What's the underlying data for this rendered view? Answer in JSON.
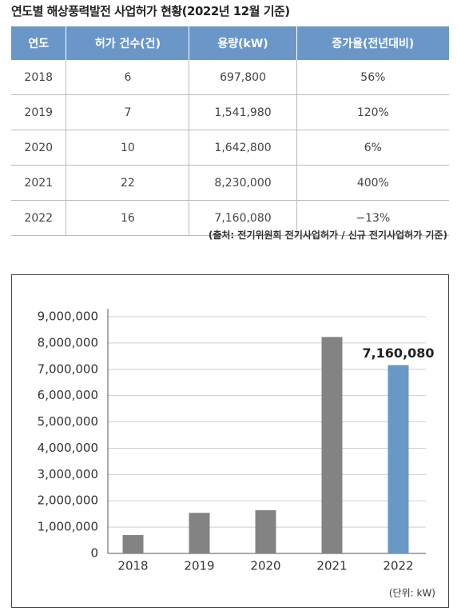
{
  "title": "연도별 해상풍력발전 사업허가 현황(2022년 12월 기준)",
  "table": {
    "header": [
      "연도",
      "허가 건수(건)",
      "용량(kW)",
      "증가율(전년대비)"
    ],
    "rows": [
      [
        "2018",
        "6",
        "697,800",
        "56%"
      ],
      [
        "2019",
        "7",
        "1,541,980",
        "120%"
      ],
      [
        "2020",
        "10",
        "1,642,800",
        "6%"
      ],
      [
        "2021",
        "22",
        "8,230,000",
        "400%"
      ],
      [
        "2022",
        "16",
        "7,160,080",
        "−13%"
      ]
    ]
  },
  "source": "(출처: 전기위원회 전기사업허가 / 신규 전기사업허가 기준)",
  "chart_data": {
    "type": "bar",
    "categories": [
      "2018",
      "2019",
      "2020",
      "2021",
      "2022"
    ],
    "values": [
      697800,
      1541980,
      1642800,
      8230000,
      7160080
    ],
    "value_labels": [
      null,
      null,
      null,
      null,
      "7,160,080"
    ],
    "colors": [
      "#838383",
      "#838383",
      "#838383",
      "#838383",
      "#6a98c6"
    ],
    "ylim": [
      0,
      9000000
    ],
    "yticks": [
      0,
      {
        "value": 1000000,
        "label": "1,000,000"
      },
      {
        "value": 2000000,
        "label": "2,000,000"
      },
      {
        "value": 3000000,
        "label": "3,000,000"
      },
      {
        "value": 4000000,
        "label": "4,000,000"
      },
      {
        "value": 5000000,
        "label": "5,000,000"
      },
      {
        "value": 6000000,
        "label": "6,000,000"
      },
      {
        "value": 7000000,
        "label": "7,000,000"
      },
      {
        "value": 8000000,
        "label": "8,000,000"
      },
      {
        "value": 9000000,
        "label": {
          "value": 9000000,
          "label": "9,000,000"
        }
      }
    ],
    "grid": true,
    "unit_note": "(단위: kW)"
  }
}
